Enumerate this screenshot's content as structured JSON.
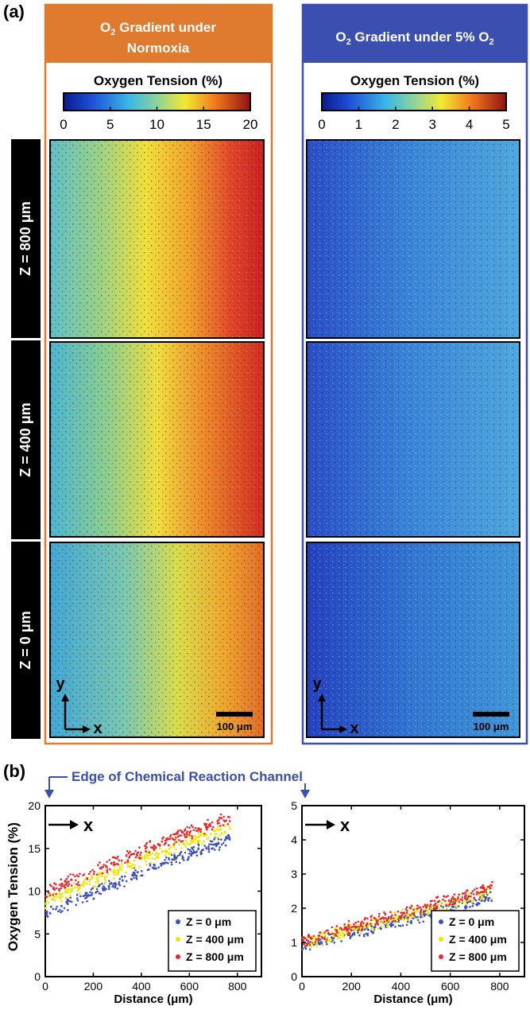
{
  "panel_a": {
    "label": "(a)",
    "left": {
      "title_line1_pre": "O",
      "title_line1_sub": "2",
      "title_line1_post": " Gradient under",
      "title_line2": "Normoxia",
      "colorbar_title": "Oxygen Tension (%)",
      "colorbar_ticks": [
        "0",
        "5",
        "10",
        "15",
        "20"
      ],
      "color": "#e07a2e"
    },
    "right": {
      "title_pre": "O",
      "title_sub": "2",
      "title_mid": " Gradient under 5% O",
      "title_sub2": "2",
      "colorbar_title": "Oxygen Tension (%)",
      "colorbar_ticks": [
        "0",
        "1",
        "2",
        "3",
        "4",
        "5"
      ],
      "color": "#3a4fb0"
    },
    "row_labels": [
      "Z = 800 μm",
      "Z = 400 μm",
      "Z = 0 μm"
    ],
    "axis_y": "y",
    "axis_x": "x",
    "scalebar": "100 μm"
  },
  "panel_b": {
    "label": "(b)",
    "edge_annotation": "Edge of Chemical Reaction Channel",
    "arrow_label": "x",
    "ylabel": "Oxygen Tension (%)",
    "xlabel": "Distance (μm)",
    "legend": [
      "Z = 0 μm",
      "Z = 400 μm",
      "Z = 800 μm"
    ]
  },
  "colors": {
    "z0": "#3b4fb8",
    "z400": "#f2e600",
    "z800": "#e8262b"
  },
  "chart_data": [
    {
      "type": "scatter",
      "xlabel": "Distance (μm)",
      "ylabel": "Oxygen Tension (%)",
      "xlim": [
        0,
        900
      ],
      "ylim": [
        0,
        20
      ],
      "xticks": [
        0,
        200,
        400,
        600,
        800
      ],
      "yticks": [
        0,
        5,
        10,
        15,
        20
      ],
      "series": [
        {
          "name": "Z = 0 μm",
          "x": [
            0,
            200,
            400,
            600,
            770
          ],
          "y": [
            7.5,
            9.8,
            12.2,
            14.5,
            16.0
          ]
        },
        {
          "name": "Z = 400 μm",
          "x": [
            0,
            200,
            400,
            600,
            770
          ],
          "y": [
            8.8,
            11.2,
            13.6,
            15.9,
            17.3
          ]
        },
        {
          "name": "Z = 800 μm",
          "x": [
            0,
            200,
            400,
            600,
            770
          ],
          "y": [
            9.8,
            12.3,
            14.7,
            16.9,
            18.6
          ]
        }
      ]
    },
    {
      "type": "scatter",
      "xlabel": "Distance (μm)",
      "ylabel": "",
      "xlim": [
        0,
        900
      ],
      "ylim": [
        0,
        5
      ],
      "xticks": [
        0,
        200,
        400,
        600,
        800
      ],
      "yticks": [
        0,
        1,
        2,
        3,
        4,
        5
      ],
      "series": [
        {
          "name": "Z = 0 μm",
          "x": [
            0,
            200,
            400,
            600,
            770
          ],
          "y": [
            0.85,
            1.25,
            1.65,
            2.0,
            2.35
          ]
        },
        {
          "name": "Z = 400 μm",
          "x": [
            0,
            200,
            400,
            600,
            770
          ],
          "y": [
            0.95,
            1.35,
            1.75,
            2.12,
            2.48
          ]
        },
        {
          "name": "Z = 800 μm",
          "x": [
            0,
            200,
            400,
            600,
            770
          ],
          "y": [
            1.05,
            1.45,
            1.85,
            2.25,
            2.6
          ]
        }
      ]
    }
  ]
}
